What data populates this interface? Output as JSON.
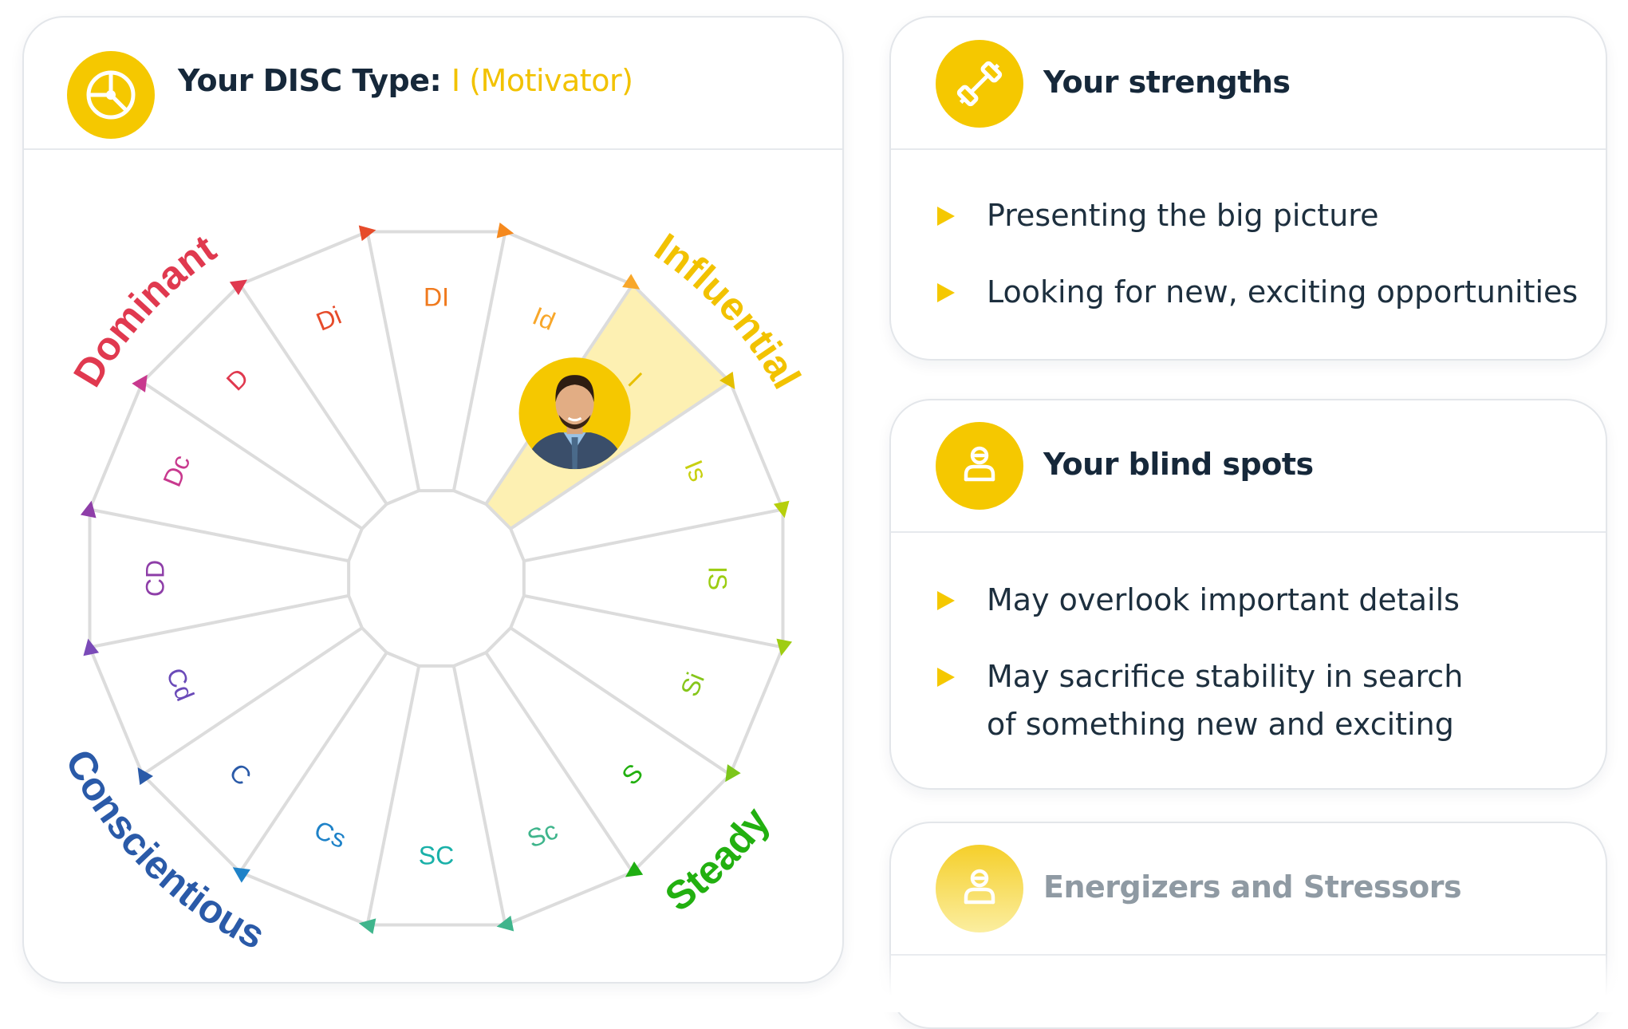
{
  "disc_card": {
    "title_prefix": "Your DISC Type:",
    "title_type": "I (Motivator)",
    "icon": "target-icon",
    "quadrant_labels": {
      "dominant": "Dominant",
      "influential": "Influential",
      "steady": "Steady",
      "conscientious": "Conscientious"
    },
    "segments": [
      "DI",
      "Id",
      "I",
      "Is",
      "IS",
      "Si",
      "S",
      "Sc",
      "SC",
      "Cs",
      "C",
      "Cd",
      "CD",
      "Dc",
      "D",
      "Di"
    ],
    "selected_segment": "I",
    "avatar": "profile-photo"
  },
  "strengths_card": {
    "title": "Your strengths",
    "icon": "dumbbell-icon",
    "items": [
      "Presenting the big picture",
      "Looking for new, exciting opportunities"
    ]
  },
  "blindspots_card": {
    "title": "Your blind spots",
    "icon": "person-icon",
    "items": [
      "May overlook important details",
      "May sacrifice stability in search of something new and exciting"
    ]
  },
  "energizers_card": {
    "title": "Energizers and Stressors",
    "icon": "person-icon"
  },
  "colors": {
    "accent": "#f5c800",
    "dominant": "#e0394f",
    "influential": "#f2c200",
    "steady": "#22b010",
    "conscientious": "#2a5aa8"
  }
}
